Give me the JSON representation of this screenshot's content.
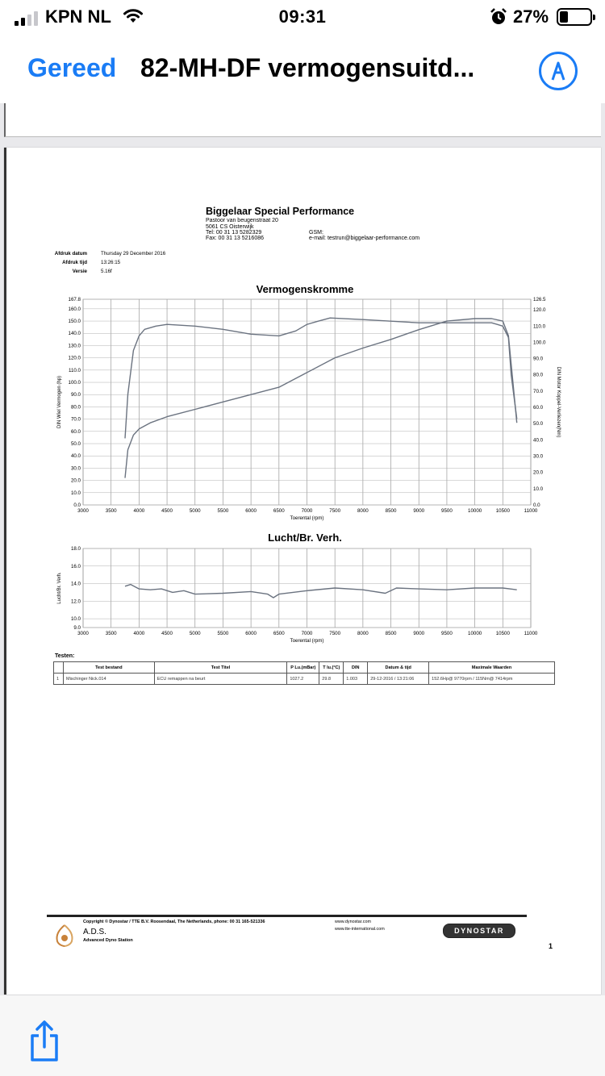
{
  "status_bar": {
    "carrier": "KPN NL",
    "time": "09:31",
    "battery": "27%"
  },
  "nav": {
    "done_label": "Gereed",
    "title": "82-MH-DF vermogensuitd...",
    "markup_icon": "markup-pen-icon",
    "accent_color": "#1a7cf5"
  },
  "document": {
    "company": "Biggelaar Special Performance",
    "address_lines": [
      "Pastoor van beugenstraat  20",
      "5061 CS Oisterwijk",
      "Tel:   00 31 13 5282329",
      "Fax:   00 31 13 5216086"
    ],
    "gsm_label": "GSM:",
    "email_line": "e-mail:   testrun@biggelaar-performance.com",
    "meta": [
      {
        "label": "Afdruk datum",
        "value": "Thursday 29 December 2016"
      },
      {
        "label": "Afdruk tijd",
        "value": "13:26:15"
      },
      {
        "label": "Versie",
        "value": "5.16f"
      }
    ],
    "tests_label": "Testen:",
    "tests_table": {
      "headers": [
        "",
        "Test bestand",
        "Test Titel",
        "P Lu.(mBar)",
        "T lu.(°C)",
        "DIN",
        "Datum & tijd",
        "Maximale Waarden"
      ],
      "rows": [
        [
          "1",
          "Mischinger Nick.014",
          "ECU remappen na beurt",
          "1027.2",
          "29.8",
          "1.003",
          "29-12-2016 / 13:21:06",
          "152.6Hp@ 9770rpm / 115Nm@ 7414rpm"
        ]
      ]
    },
    "footer": {
      "copyright": "Copyright ©  Dynostar / TTE B.V. Roosendaal, The Netherlands, phone: 00 31 165-521336",
      "web1": "www.dynostar.com",
      "web2": "www.tte-international.com",
      "ads_name": "A.D.S.",
      "ads_sub": "Advanced Dyno Station",
      "brand": "DYNOSTAR"
    },
    "page_number": "1"
  },
  "chart_data": [
    {
      "type": "line",
      "title": "Vermogenskromme",
      "xlabel": "Toerental (rpm)",
      "ylabel": "DIN Wiel Vermogen (hp)",
      "y2label": "DIN Motor Koppel-Verliezen(Nm)",
      "xlim": [
        3000,
        11000
      ],
      "ylim": [
        0,
        167.8
      ],
      "y2lim": [
        0,
        126.5
      ],
      "x_ticks": [
        "3000",
        "3500",
        "4000",
        "4500",
        "5000",
        "5500",
        "6000",
        "6500",
        "7000",
        "7500",
        "8000",
        "8500",
        "9000",
        "9500",
        "10000",
        "10500",
        "11000"
      ],
      "y_ticks": [
        "0.0",
        "10.0",
        "20.0",
        "30.0",
        "40.0",
        "50.0",
        "60.0",
        "70.0",
        "80.0",
        "90.0",
        "100.0",
        "110.0",
        "120.0",
        "130.0",
        "140.0",
        "150.0",
        "160.0",
        "167.8"
      ],
      "y2_ticks": [
        "0.0",
        "10.0",
        "20.0",
        "30.0",
        "40.0",
        "50.0",
        "60.0",
        "70.0",
        "80.0",
        "90.0",
        "100.0",
        "110.0",
        "120.0",
        "126.5"
      ],
      "grid": true,
      "series": [
        {
          "axis": "left",
          "x": [
            3750,
            3800,
            3900,
            4000,
            4200,
            4500,
            5000,
            5500,
            6000,
            6500,
            7000,
            7500,
            8000,
            8500,
            9000,
            9500,
            10000,
            10300,
            10500,
            10600,
            10750
          ],
          "y": [
            22,
            45,
            57,
            62,
            67,
            72,
            78,
            84,
            90,
            96,
            108,
            120,
            128,
            135,
            143,
            150,
            152,
            152,
            150,
            138,
            67
          ]
        },
        {
          "axis": "right",
          "x": [
            3750,
            3800,
            3900,
            4000,
            4100,
            4300,
            4500,
            5000,
            5500,
            6000,
            6500,
            6800,
            7000,
            7200,
            7414,
            8000,
            8500,
            9000,
            9500,
            10000,
            10300,
            10400,
            10500,
            10600,
            10650,
            10750
          ],
          "y": [
            41,
            68,
            95,
            104,
            108,
            110,
            111,
            110,
            108,
            105,
            104,
            107,
            111,
            113,
            115,
            114,
            113,
            112,
            112,
            112,
            112,
            111,
            110,
            103,
            80,
            53
          ]
        }
      ]
    },
    {
      "type": "line",
      "title": "Lucht/Br. Verh.",
      "xlabel": "Toerental (rpm)",
      "ylabel": "Lucht/Br. Verh.",
      "xlim": [
        3000,
        11000
      ],
      "ylim": [
        9.0,
        18.0
      ],
      "x_ticks": [
        "3000",
        "3500",
        "4000",
        "4500",
        "5000",
        "5500",
        "6000",
        "6500",
        "7000",
        "7500",
        "8000",
        "8500",
        "9000",
        "9500",
        "10000",
        "10500",
        "11000"
      ],
      "y_ticks": [
        "9.0",
        "10.0",
        "12.0",
        "14.0",
        "16.0",
        "18.0"
      ],
      "grid": true,
      "series": [
        {
          "x": [
            3750,
            3850,
            4000,
            4200,
            4400,
            4600,
            4800,
            5000,
            5500,
            6000,
            6300,
            6400,
            6500,
            7000,
            7500,
            8000,
            8400,
            8600,
            9000,
            9500,
            10000,
            10500,
            10750
          ],
          "y": [
            13.7,
            13.9,
            13.4,
            13.3,
            13.4,
            13.0,
            13.2,
            12.8,
            12.9,
            13.1,
            12.8,
            12.4,
            12.8,
            13.2,
            13.5,
            13.3,
            12.9,
            13.5,
            13.4,
            13.3,
            13.5,
            13.5,
            13.3
          ]
        }
      ]
    }
  ]
}
